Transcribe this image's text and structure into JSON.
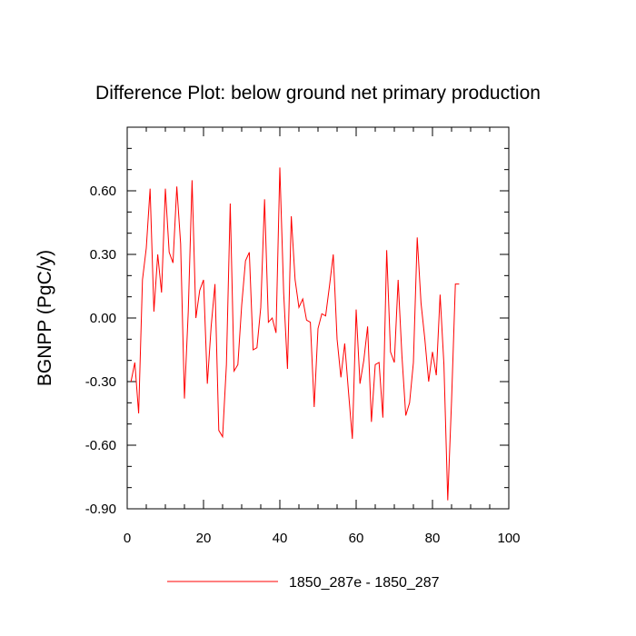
{
  "chart_data": {
    "type": "line",
    "title": "Difference Plot: below ground net primary production",
    "xlabel": "",
    "ylabel": "BGNPP  (PgC/y)",
    "xlim": [
      0,
      100
    ],
    "ylim": [
      -0.9,
      0.9
    ],
    "x_ticks": [
      0,
      20,
      40,
      60,
      80,
      100
    ],
    "x_tick_labels": [
      "0",
      "20",
      "40",
      "60",
      "80",
      "100"
    ],
    "y_ticks": [
      -0.9,
      -0.6,
      -0.3,
      0.0,
      0.3,
      0.6
    ],
    "y_tick_labels": [
      "-0.90",
      "-0.60",
      "-0.30",
      "0.00",
      "0.30",
      "0.60"
    ],
    "grid": false,
    "legend_position": "bottom-center",
    "series": [
      {
        "name": "1850_287e - 1850_287",
        "color": "#ff0000",
        "x": [
          1,
          2,
          3,
          4,
          5,
          6,
          7,
          8,
          9,
          10,
          11,
          12,
          13,
          14,
          15,
          16,
          17,
          18,
          19,
          20,
          21,
          22,
          23,
          24,
          25,
          26,
          27,
          28,
          29,
          30,
          31,
          32,
          33,
          34,
          35,
          36,
          37,
          38,
          39,
          40,
          41,
          42,
          43,
          44,
          45,
          46,
          47,
          48,
          49,
          50,
          51,
          52,
          53,
          54,
          55,
          56,
          57,
          58,
          59,
          60,
          61,
          62,
          63,
          64,
          65,
          66,
          67,
          68,
          69,
          70,
          71,
          72,
          73,
          74,
          75,
          76,
          77,
          78,
          79,
          80,
          81,
          82,
          83,
          84,
          85,
          86,
          87
        ],
        "values": [
          -0.3,
          -0.21,
          -0.45,
          0.18,
          0.33,
          0.61,
          0.03,
          0.3,
          0.12,
          0.61,
          0.31,
          0.26,
          0.62,
          0.35,
          -0.38,
          0.03,
          0.65,
          0.0,
          0.13,
          0.18,
          -0.31,
          -0.04,
          0.16,
          -0.53,
          -0.56,
          -0.22,
          0.54,
          -0.25,
          -0.22,
          0.06,
          0.27,
          0.31,
          -0.15,
          -0.14,
          0.05,
          0.56,
          -0.02,
          0.0,
          -0.07,
          0.71,
          0.12,
          -0.24,
          0.48,
          0.18,
          0.05,
          0.09,
          -0.01,
          -0.02,
          -0.42,
          -0.05,
          0.02,
          0.01,
          0.15,
          0.3,
          -0.1,
          -0.28,
          -0.12,
          -0.35,
          -0.57,
          0.04,
          -0.31,
          -0.2,
          -0.04,
          -0.49,
          -0.22,
          -0.21,
          -0.47,
          0.32,
          -0.16,
          -0.21,
          0.18,
          -0.18,
          -0.46,
          -0.4,
          -0.21,
          0.38,
          0.07,
          -0.1,
          -0.3,
          -0.16,
          -0.27,
          0.11,
          -0.22,
          -0.86,
          -0.39,
          0.16,
          0.16
        ]
      }
    ]
  }
}
